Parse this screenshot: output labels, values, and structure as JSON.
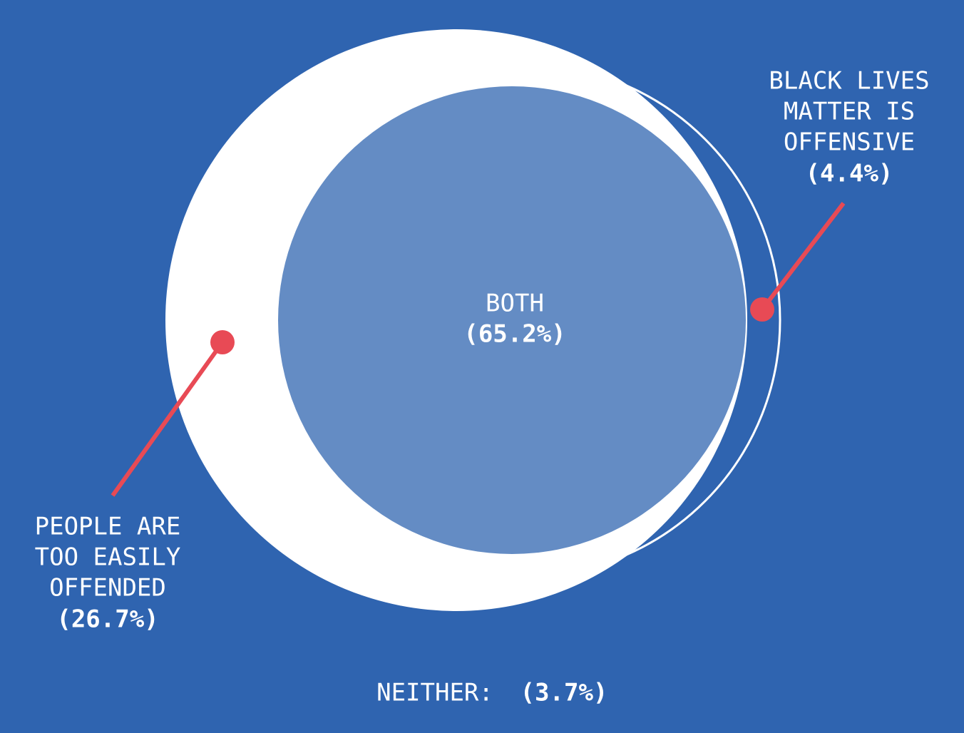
{
  "regions": [
    {
      "lines": [
        "BOTH"
      ],
      "value": "(65.2%)"
    },
    {
      "lines": [
        "BLACK LIVES",
        "MATTER IS",
        "OFFENSIVE"
      ],
      "value": "(4.4%)"
    },
    {
      "lines": [
        "PEOPLE ARE",
        "TOO EASILY",
        "OFFENDED"
      ],
      "value": "(26.7%)"
    }
  ],
  "neither": {
    "label": "NEITHER:",
    "value": "(3.7%)"
  }
}
